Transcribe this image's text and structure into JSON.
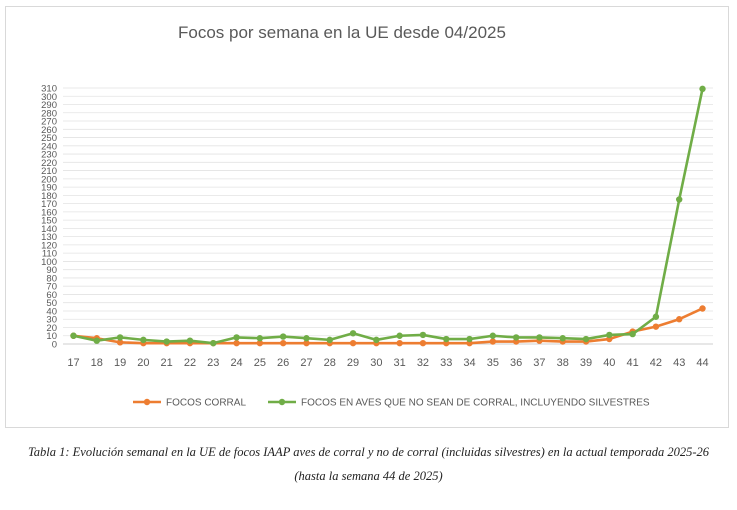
{
  "chart_data": {
    "type": "line",
    "title": "Focos por semana en la UE desde 04/2025",
    "x": [
      17,
      18,
      19,
      20,
      21,
      22,
      23,
      24,
      25,
      26,
      27,
      28,
      29,
      30,
      31,
      32,
      33,
      34,
      35,
      36,
      37,
      38,
      39,
      40,
      41,
      42,
      43,
      44
    ],
    "ylim": [
      0,
      310
    ],
    "ytick_step": 10,
    "grid": true,
    "legend_position": "bottom",
    "series": [
      {
        "name": "FOCOS CORRAL",
        "color": "#ed7d31",
        "values": [
          10,
          7,
          2,
          1,
          1,
          1,
          1,
          1,
          1,
          1,
          1,
          1,
          1,
          1,
          1,
          1,
          1,
          1,
          3,
          3,
          4,
          3,
          3,
          6,
          15,
          21,
          30,
          43
        ]
      },
      {
        "name": "FOCOS EN AVES QUE NO SEAN DE CORRAL, INCLUYENDO SILVESTRES",
        "color": "#70ad47",
        "values": [
          10,
          4,
          8,
          5,
          3,
          4,
          1,
          8,
          7,
          9,
          7,
          5,
          13,
          5,
          10,
          11,
          6,
          6,
          10,
          8,
          8,
          7,
          6,
          11,
          12,
          33,
          175,
          309
        ]
      }
    ]
  },
  "caption": {
    "line1": "Tabla 1: Evolución semanal en la UE de focos IAAP aves de corral y no de corral (incluidas silvestres) en la actual temporada 2025-26",
    "line2": "(hasta la semana 44 de 2025)"
  }
}
